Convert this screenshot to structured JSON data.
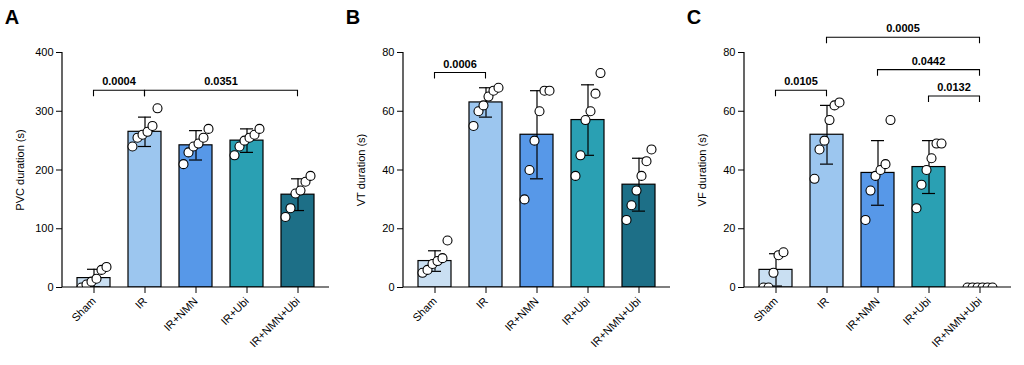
{
  "chart_data": [
    {
      "type": "bar",
      "title": "A",
      "ylabel": "PVC duration (s)",
      "categories": [
        "Sham",
        "IR",
        "IR+NMN",
        "IR+Ubi",
        "IR+NMN+Ubi"
      ],
      "values": [
        16,
        265,
        242,
        250,
        158
      ],
      "errors": [
        15,
        25,
        25,
        20,
        27
      ],
      "points": [
        [
          0,
          5,
          10,
          15,
          30,
          35
        ],
        [
          240,
          255,
          260,
          265,
          275,
          305
        ],
        [
          210,
          230,
          240,
          245,
          255,
          270
        ],
        [
          225,
          240,
          250,
          255,
          260,
          270
        ],
        [
          120,
          135,
          160,
          165,
          180,
          190
        ]
      ],
      "colors": [
        "#c9dff2",
        "#9cc6ef",
        "#5798e8",
        "#2aa0b3",
        "#1d6f87"
      ],
      "ylim": [
        0,
        400
      ],
      "yticks": [
        0,
        100,
        200,
        300,
        400
      ],
      "annotations": [
        {
          "from": "Sham",
          "to": "IR",
          "y": 335,
          "label": "0.0004"
        },
        {
          "from": "IR",
          "to": "IR+NMN+Ubi",
          "y": 335,
          "label": "0.0351"
        }
      ]
    },
    {
      "type": "bar",
      "title": "B",
      "ylabel": "VT duration (s)",
      "categories": [
        "Sham",
        "IR",
        "IR+NMN",
        "IR+Ubi",
        "IR+NMN+Ubi"
      ],
      "values": [
        9,
        63,
        52,
        57,
        35
      ],
      "errors": [
        3.5,
        5,
        15,
        12,
        9
      ],
      "points": [
        [
          5,
          6,
          8,
          9,
          10,
          16
        ],
        [
          55,
          60,
          62,
          65,
          67,
          68
        ],
        [
          30,
          40,
          50,
          60,
          67,
          67
        ],
        [
          38,
          45,
          57,
          60,
          66,
          73
        ],
        [
          23,
          28,
          33,
          38,
          43,
          47
        ]
      ],
      "colors": [
        "#c9dff2",
        "#9cc6ef",
        "#5798e8",
        "#2aa0b3",
        "#1d6f87"
      ],
      "ylim": [
        0,
        80
      ],
      "yticks": [
        0,
        20,
        40,
        60,
        80
      ],
      "annotations": [
        {
          "from": "Sham",
          "to": "IR",
          "y": 73,
          "label": "0.0006"
        }
      ]
    },
    {
      "type": "bar",
      "title": "C",
      "ylabel": "VF duration (s)",
      "categories": [
        "Sham",
        "IR",
        "IR+NMN",
        "IR+Ubi",
        "IR+NMN+Ubi"
      ],
      "values": [
        6,
        52,
        39,
        41,
        0
      ],
      "errors": [
        5.5,
        10,
        11,
        9,
        0
      ],
      "points": [
        [
          0,
          0,
          5,
          11,
          12
        ],
        [
          37,
          47,
          50,
          57,
          62,
          63
        ],
        [
          23,
          33,
          38,
          40,
          42,
          57
        ],
        [
          27,
          35,
          40,
          44,
          49,
          49
        ],
        [
          0,
          0,
          0,
          0,
          0,
          0
        ]
      ],
      "colors": [
        "#c9dff2",
        "#9cc6ef",
        "#5798e8",
        "#2aa0b3",
        "#1d6f87"
      ],
      "ylim": [
        0,
        80
      ],
      "yticks": [
        0,
        20,
        40,
        60,
        80
      ],
      "annotations": [
        {
          "from": "Sham",
          "to": "IR",
          "y": 67,
          "label": "0.0105"
        },
        {
          "from": "IR",
          "to": "IR+NMN+Ubi",
          "y": 85,
          "label": "0.0005"
        },
        {
          "from": "IR+NMN",
          "to": "IR+NMN+Ubi",
          "y": 74,
          "label": "0.0442"
        },
        {
          "from": "IR+Ubi",
          "to": "IR+NMN+Ubi",
          "y": 65,
          "label": "0.0132"
        }
      ]
    }
  ]
}
